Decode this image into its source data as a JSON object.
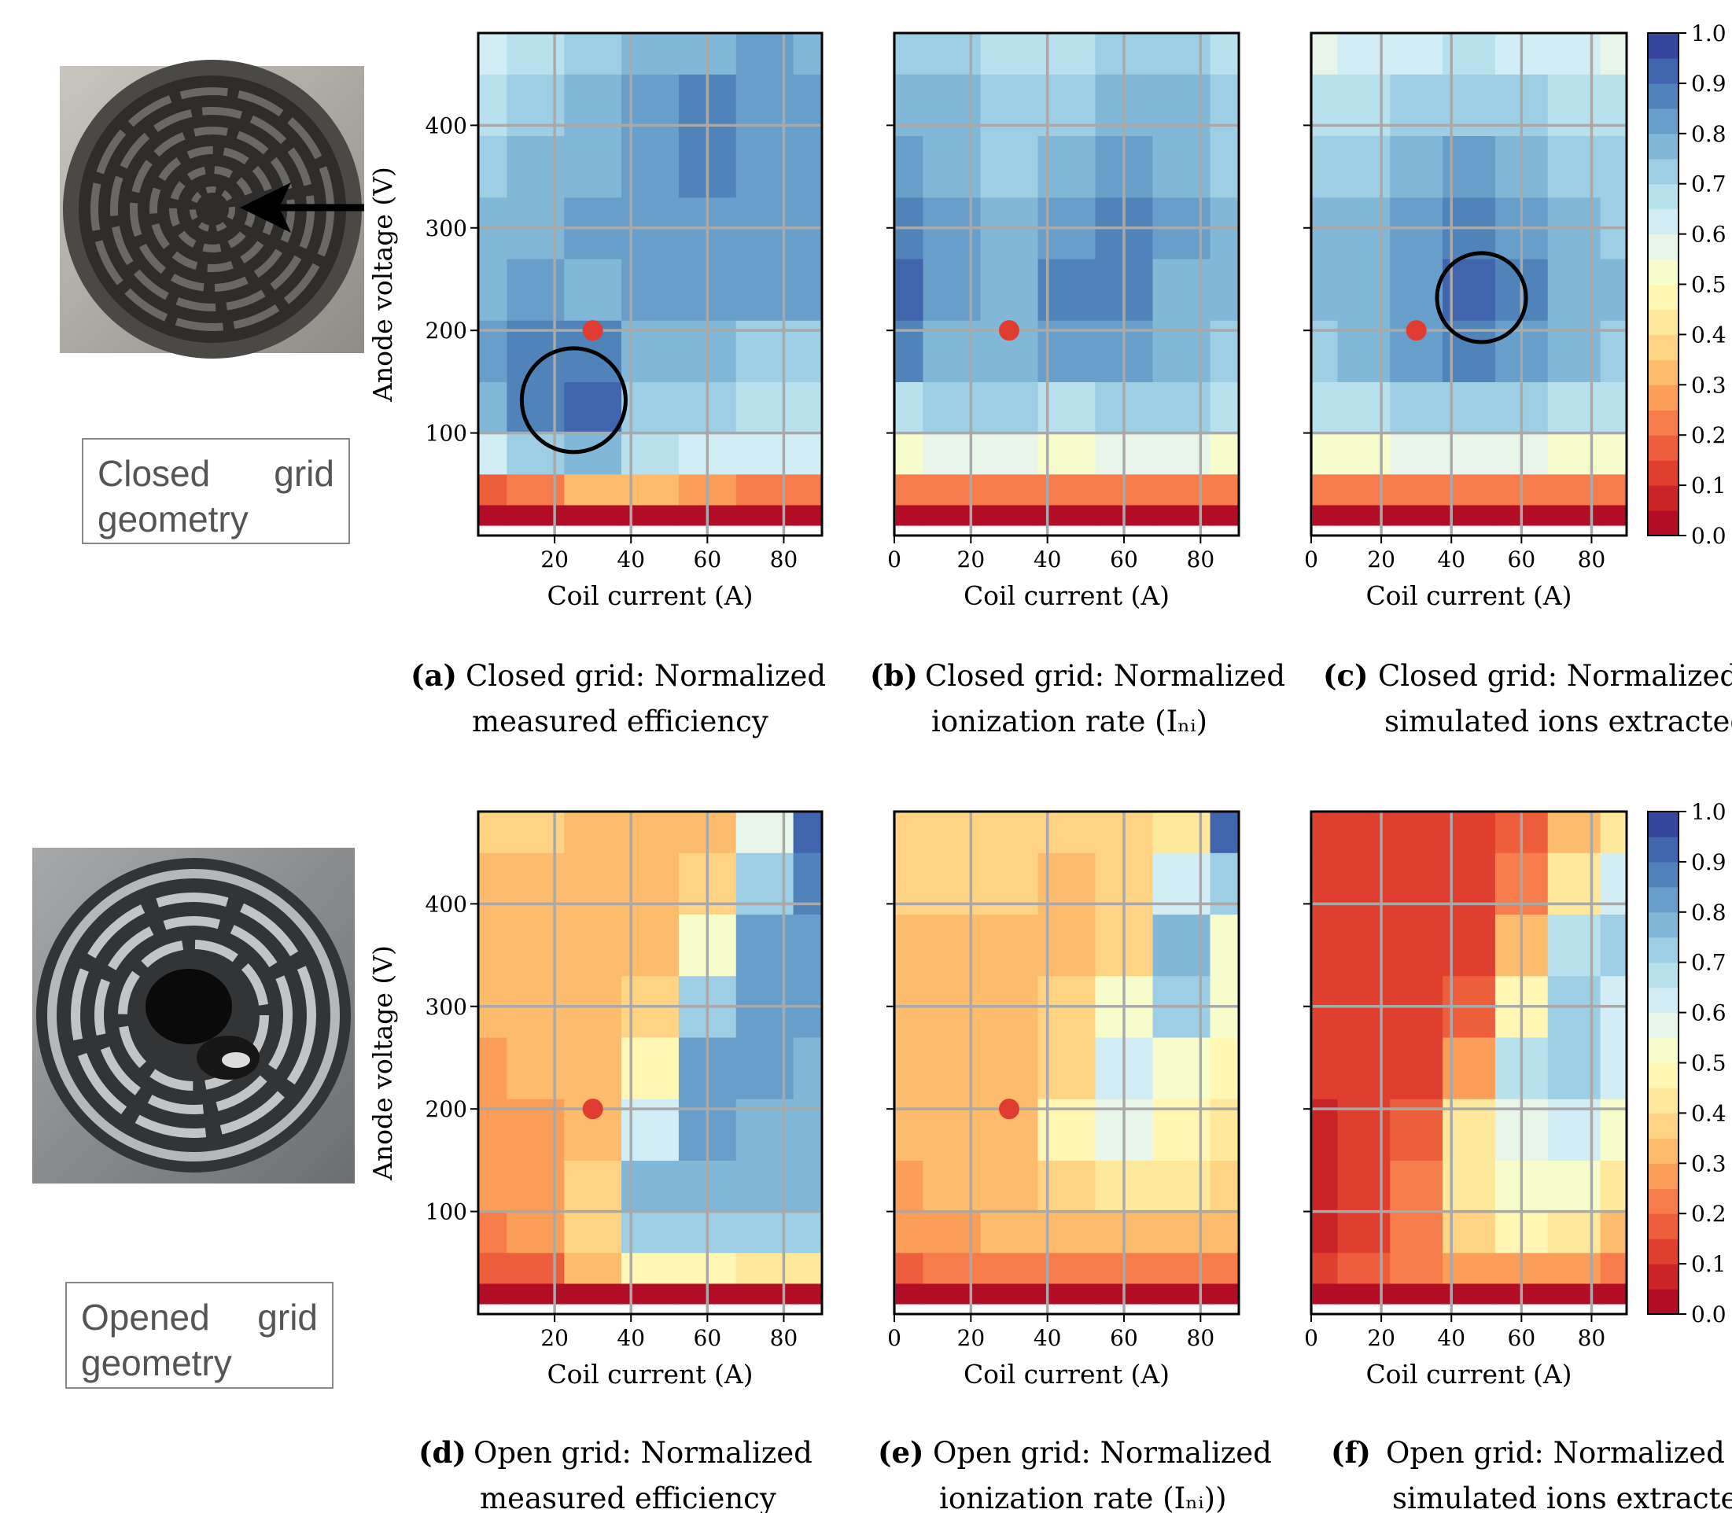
{
  "geometry_labels": [
    "Closed grid geometry",
    "Opened grid geometry"
  ],
  "colorbar": {
    "colormap": "RdYlBu",
    "levels": 20,
    "lim": [
      0,
      1
    ],
    "ticks": [
      {
        "value": 0,
        "label": "0.0"
      },
      0.1,
      0.2,
      0.3,
      0.4,
      0.5,
      0.6,
      0.7,
      0.8,
      0.9,
      {
        "value": 1,
        "label": "1.0"
      }
    ]
  },
  "chart_data": [
    {
      "type": "contour",
      "caption": {
        "label": "(a)",
        "text": [
          "Closed grid: Normalized",
          "measured efficiency"
        ]
      },
      "xlabel": "Coil current (A)",
      "ylabel": "Anode voltage (V)",
      "xlim": [
        0,
        90
      ],
      "ylim": [
        0,
        490
      ],
      "xticks": [
        20,
        40,
        60,
        80
      ],
      "yticks": [
        100,
        200,
        300,
        400
      ],
      "grid": true,
      "x": [
        0,
        15,
        30,
        45,
        60,
        75,
        90
      ],
      "y": [
        20,
        40,
        80,
        120,
        180,
        240,
        300,
        360,
        420,
        480
      ],
      "z": [
        [
          0.02,
          0.02,
          0.02,
          0.02,
          0.02,
          0.02,
          0.02
        ],
        [
          0.15,
          0.2,
          0.3,
          0.3,
          0.25,
          0.2,
          0.2
        ],
        [
          0.6,
          0.7,
          0.75,
          0.65,
          0.62,
          0.6,
          0.6
        ],
        [
          0.75,
          0.85,
          0.9,
          0.7,
          0.7,
          0.65,
          0.65
        ],
        [
          0.8,
          0.85,
          0.85,
          0.75,
          0.78,
          0.72,
          0.72
        ],
        [
          0.78,
          0.82,
          0.78,
          0.8,
          0.82,
          0.8,
          0.8
        ],
        [
          0.75,
          0.78,
          0.8,
          0.82,
          0.82,
          0.8,
          0.8
        ],
        [
          0.72,
          0.75,
          0.78,
          0.82,
          0.85,
          0.82,
          0.8
        ],
        [
          0.68,
          0.72,
          0.75,
          0.8,
          0.85,
          0.82,
          0.8
        ],
        [
          0.62,
          0.68,
          0.72,
          0.75,
          0.78,
          0.8,
          0.78
        ]
      ],
      "marker": {
        "x": 30,
        "y": 200,
        "color": "#e03c31"
      },
      "circle": {
        "x": 25,
        "y": 132,
        "r": 13.6
      }
    },
    {
      "type": "contour",
      "caption": {
        "label": "(b)",
        "text": [
          "Closed grid: Normalized",
          "ionization rate (Iₙᵢ)"
        ]
      },
      "xlabel": "Coil current (A)",
      "xlim": [
        0,
        90
      ],
      "ylim": [
        0,
        490
      ],
      "xticks": [
        0,
        20,
        40,
        60,
        80
      ],
      "grid": true,
      "x": [
        0,
        15,
        30,
        45,
        60,
        75,
        90
      ],
      "y": [
        20,
        40,
        80,
        120,
        180,
        240,
        300,
        360,
        420,
        480
      ],
      "z": [
        [
          0.02,
          0.02,
          0.02,
          0.02,
          0.02,
          0.02,
          0.02
        ],
        [
          0.2,
          0.22,
          0.22,
          0.2,
          0.22,
          0.22,
          0.2
        ],
        [
          0.5,
          0.55,
          0.55,
          0.5,
          0.55,
          0.55,
          0.5
        ],
        [
          0.68,
          0.7,
          0.7,
          0.68,
          0.7,
          0.7,
          0.68
        ],
        [
          0.85,
          0.78,
          0.75,
          0.8,
          0.8,
          0.75,
          0.72
        ],
        [
          0.9,
          0.82,
          0.78,
          0.85,
          0.85,
          0.78,
          0.75
        ],
        [
          0.85,
          0.8,
          0.75,
          0.82,
          0.85,
          0.8,
          0.75
        ],
        [
          0.8,
          0.78,
          0.72,
          0.78,
          0.82,
          0.78,
          0.72
        ],
        [
          0.78,
          0.75,
          0.7,
          0.72,
          0.78,
          0.75,
          0.72
        ],
        [
          0.72,
          0.7,
          0.68,
          0.68,
          0.7,
          0.7,
          0.68
        ]
      ],
      "marker": {
        "x": 30,
        "y": 200,
        "color": "#e03c31"
      }
    },
    {
      "type": "contour",
      "caption": {
        "label": "(c)",
        "text": [
          "Closed grid: Normalized",
          "simulated ions extracted"
        ]
      },
      "xlabel": "Coil current (A)",
      "xlim": [
        0,
        90
      ],
      "ylim": [
        0,
        490
      ],
      "xticks": [
        0,
        20,
        40,
        60,
        80
      ],
      "grid": true,
      "x": [
        0,
        15,
        30,
        45,
        60,
        75,
        90
      ],
      "y": [
        20,
        40,
        80,
        120,
        180,
        240,
        300,
        360,
        420,
        480
      ],
      "z": [
        [
          0.02,
          0.02,
          0.02,
          0.02,
          0.02,
          0.02,
          0.02
        ],
        [
          0.2,
          0.2,
          0.22,
          0.22,
          0.22,
          0.2,
          0.2
        ],
        [
          0.5,
          0.5,
          0.55,
          0.55,
          0.55,
          0.5,
          0.5
        ],
        [
          0.65,
          0.68,
          0.72,
          0.72,
          0.72,
          0.68,
          0.65
        ],
        [
          0.72,
          0.75,
          0.8,
          0.85,
          0.82,
          0.75,
          0.72
        ],
        [
          0.75,
          0.78,
          0.82,
          0.92,
          0.85,
          0.78,
          0.75
        ],
        [
          0.75,
          0.78,
          0.8,
          0.88,
          0.82,
          0.78,
          0.72
        ],
        [
          0.72,
          0.72,
          0.75,
          0.8,
          0.78,
          0.72,
          0.7
        ],
        [
          0.65,
          0.68,
          0.7,
          0.72,
          0.7,
          0.68,
          0.65
        ],
        [
          0.55,
          0.6,
          0.62,
          0.65,
          0.62,
          0.6,
          0.58
        ]
      ],
      "marker": {
        "x": 30,
        "y": 200,
        "color": "#e03c31"
      },
      "circle": {
        "x": 48.6,
        "y": 232,
        "r": 12.7
      }
    },
    {
      "type": "contour",
      "caption": {
        "label": "(d)",
        "text": [
          "Open grid: Normalized",
          "measured efficiency"
        ]
      },
      "xlabel": "Coil current (A)",
      "ylabel": "Anode voltage (V)",
      "xlim": [
        0,
        90
      ],
      "ylim": [
        0,
        490
      ],
      "xticks": [
        20,
        40,
        60,
        80
      ],
      "yticks": [
        100,
        200,
        300,
        400
      ],
      "grid": true,
      "x": [
        0,
        15,
        30,
        45,
        60,
        75,
        90
      ],
      "y": [
        20,
        40,
        80,
        120,
        180,
        240,
        300,
        360,
        420,
        480
      ],
      "z": [
        [
          0.02,
          0.02,
          0.02,
          0.02,
          0.02,
          0.02,
          0.02
        ],
        [
          0.15,
          0.18,
          0.3,
          0.45,
          0.45,
          0.42,
          0.4
        ],
        [
          0.2,
          0.25,
          0.38,
          0.7,
          0.72,
          0.7,
          0.7
        ],
        [
          0.25,
          0.28,
          0.35,
          0.75,
          0.78,
          0.75,
          0.75
        ],
        [
          0.25,
          0.28,
          0.3,
          0.6,
          0.8,
          0.78,
          0.75
        ],
        [
          0.28,
          0.3,
          0.3,
          0.45,
          0.8,
          0.8,
          0.78
        ],
        [
          0.3,
          0.32,
          0.32,
          0.35,
          0.7,
          0.8,
          0.8
        ],
        [
          0.32,
          0.33,
          0.33,
          0.33,
          0.5,
          0.8,
          0.82
        ],
        [
          0.33,
          0.34,
          0.33,
          0.33,
          0.35,
          0.7,
          0.85
        ],
        [
          0.35,
          0.35,
          0.34,
          0.33,
          0.33,
          0.55,
          0.9
        ]
      ],
      "marker": {
        "x": 30,
        "y": 200,
        "color": "#e03c31"
      }
    },
    {
      "type": "contour",
      "caption": {
        "label": "(e)",
        "text": [
          "Open grid: Normalized",
          "ionization rate (Iₙᵢ))"
        ]
      },
      "xlabel": "Coil current (A)",
      "xlim": [
        0,
        90
      ],
      "ylim": [
        0,
        490
      ],
      "xticks": [
        0,
        20,
        40,
        60,
        80
      ],
      "grid": true,
      "x": [
        0,
        15,
        30,
        45,
        60,
        75,
        90
      ],
      "y": [
        20,
        40,
        80,
        120,
        180,
        240,
        300,
        360,
        420,
        480
      ],
      "z": [
        [
          0.02,
          0.02,
          0.02,
          0.02,
          0.02,
          0.02,
          0.02
        ],
        [
          0.15,
          0.2,
          0.22,
          0.22,
          0.22,
          0.2,
          0.2
        ],
        [
          0.25,
          0.28,
          0.3,
          0.32,
          0.32,
          0.3,
          0.3
        ],
        [
          0.28,
          0.3,
          0.32,
          0.38,
          0.42,
          0.4,
          0.38
        ],
        [
          0.3,
          0.3,
          0.32,
          0.45,
          0.55,
          0.45,
          0.4
        ],
        [
          0.32,
          0.32,
          0.32,
          0.38,
          0.62,
          0.5,
          0.45
        ],
        [
          0.33,
          0.33,
          0.33,
          0.35,
          0.5,
          0.7,
          0.5
        ],
        [
          0.34,
          0.34,
          0.34,
          0.34,
          0.38,
          0.75,
          0.5
        ],
        [
          0.35,
          0.35,
          0.35,
          0.34,
          0.35,
          0.6,
          0.7
        ],
        [
          0.35,
          0.35,
          0.35,
          0.35,
          0.35,
          0.4,
          0.9
        ]
      ],
      "marker": {
        "x": 30,
        "y": 200,
        "color": "#e03c31"
      }
    },
    {
      "type": "contour",
      "caption": {
        "label": "(f)",
        "text": [
          "Open grid: Normalized",
          "simulated ions extracted"
        ]
      },
      "xlabel": "Coil current (A)",
      "xlim": [
        0,
        90
      ],
      "ylim": [
        0,
        490
      ],
      "xticks": [
        0,
        20,
        40,
        60,
        80
      ],
      "grid": true,
      "x": [
        0,
        15,
        30,
        45,
        60,
        75,
        90
      ],
      "y": [
        20,
        40,
        80,
        120,
        180,
        240,
        300,
        360,
        420,
        480
      ],
      "z": [
        [
          0.02,
          0.02,
          0.02,
          0.02,
          0.02,
          0.02,
          0.02
        ],
        [
          0.1,
          0.15,
          0.2,
          0.25,
          0.28,
          0.25,
          0.2
        ],
        [
          0.08,
          0.12,
          0.2,
          0.35,
          0.45,
          0.4,
          0.3
        ],
        [
          0.05,
          0.12,
          0.2,
          0.4,
          0.5,
          0.5,
          0.4
        ],
        [
          0.08,
          0.1,
          0.15,
          0.4,
          0.55,
          0.6,
          0.5
        ],
        [
          0.12,
          0.12,
          0.12,
          0.25,
          0.65,
          0.7,
          0.6
        ],
        [
          0.12,
          0.12,
          0.12,
          0.15,
          0.45,
          0.7,
          0.6
        ],
        [
          0.12,
          0.12,
          0.12,
          0.12,
          0.3,
          0.65,
          0.7
        ],
        [
          0.12,
          0.12,
          0.12,
          0.12,
          0.2,
          0.4,
          0.6
        ],
        [
          0.1,
          0.1,
          0.1,
          0.12,
          0.15,
          0.3,
          0.4
        ]
      ]
    }
  ]
}
